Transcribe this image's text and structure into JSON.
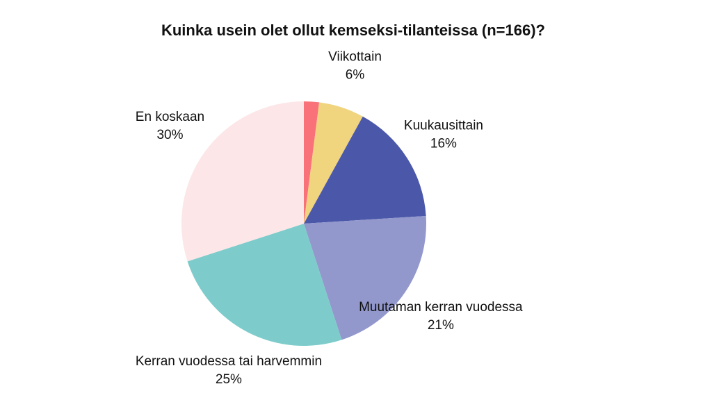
{
  "chart_data": {
    "type": "pie",
    "title": "Kuinka usein olet ollut kemseksi-tilanteissa (n=166)?",
    "categories": [
      null,
      "Viikottain",
      "Kuukausittain",
      "Muutaman kerran vuodessa",
      "Kerran vuodessa tai harvemmin",
      "En koskaan"
    ],
    "values": [
      2,
      6,
      16,
      21,
      25,
      30
    ],
    "value_labels": [
      null,
      "6%",
      "16%",
      "21%",
      "25%",
      "30%"
    ],
    "colors": [
      "#f9727a",
      "#f0d47e",
      "#4b57a8",
      "#9298cc",
      "#7dcccb",
      "#fce6e8"
    ]
  }
}
